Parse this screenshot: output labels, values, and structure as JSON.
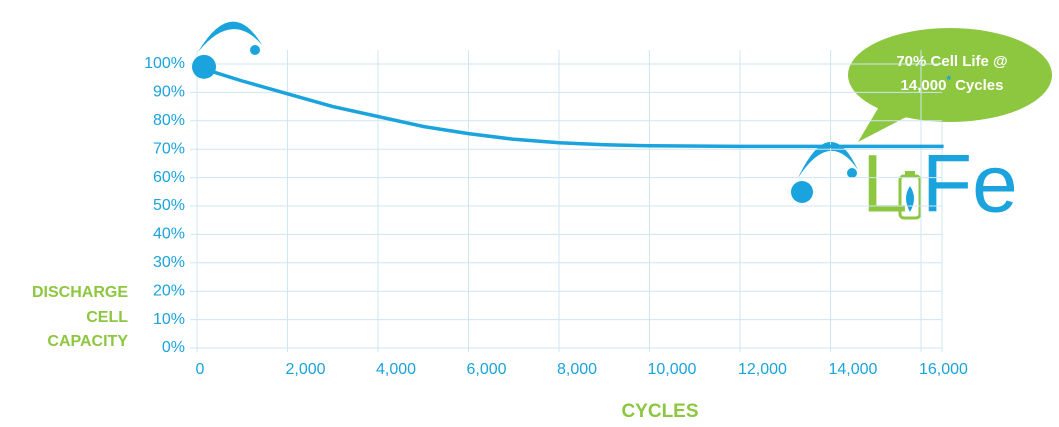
{
  "chart_data": {
    "type": "line",
    "y_axis_title": [
      "DISCHARGE",
      "CELL",
      "CAPACITY"
    ],
    "x_axis_title": "CYCLES",
    "x": [
      0,
      1000,
      2000,
      3000,
      4000,
      5000,
      6000,
      7000,
      8000,
      9000,
      10000,
      12000,
      14000,
      16000,
      16500
    ],
    "series": [
      {
        "color": "#1aa3dc",
        "values": [
          99,
          94,
          89.5,
          85,
          81.5,
          78,
          75.5,
          73.5,
          72.3,
          71.6,
          71.2,
          71,
          71,
          71,
          71
        ]
      }
    ],
    "xlim": [
      0,
      16000
    ],
    "ylim": [
      0,
      100
    ],
    "xticks": [
      0,
      {
        "value": 2000,
        "label": "2,000"
      },
      {
        "value": 4000,
        "label": "4,000"
      },
      {
        "value": 6000,
        "label": "6,000"
      },
      {
        "value": 8000,
        "label": "8,000"
      },
      {
        "value": 10000,
        "label": "10,000"
      },
      {
        "value": 12000,
        "label": "12,000"
      },
      {
        "value": 14000,
        "label": "14,000"
      },
      {
        "value": 16000,
        "label": "16,000"
      }
    ],
    "yticks": [
      {
        "value": 0,
        "label": "0%"
      },
      {
        "value": 10,
        "label": "10%"
      },
      {
        "value": 20,
        "label": "20%"
      },
      {
        "value": 30,
        "label": "30%"
      },
      {
        "value": 40,
        "label": "40%"
      },
      {
        "value": 50,
        "label": "50%"
      },
      {
        "value": 60,
        "label": "60%"
      },
      {
        "value": 70,
        "label": "70%"
      },
      {
        "value": 80,
        "label": "80%"
      },
      {
        "value": 90,
        "label": "90%"
      },
      {
        "value": 100,
        "label": "100%"
      }
    ],
    "grid": true,
    "annotation": {
      "line1": "70% Cell Life @",
      "line2_number": "14,000",
      "line2_mark": "*",
      "line2_end": "Cycles"
    },
    "logo": {
      "left": "L",
      "right": "Fe"
    }
  }
}
